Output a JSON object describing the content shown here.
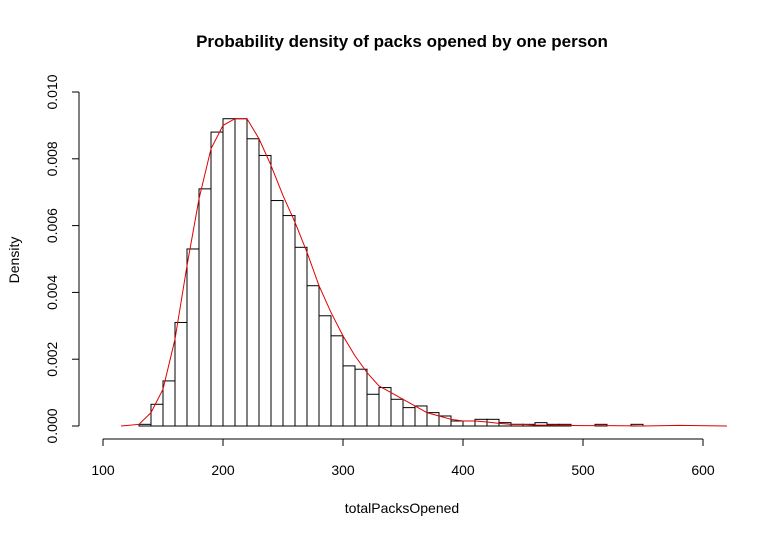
{
  "chart_data": {
    "type": "histogram",
    "title": "Probability density of packs opened by one person",
    "xlabel": "totalPacksOpened",
    "ylabel": "Density",
    "xlim": [
      100,
      620
    ],
    "ylim": [
      0,
      0.01
    ],
    "x_ticks": [
      100,
      200,
      300,
      400,
      500,
      600
    ],
    "y_ticks": [
      0.0,
      0.002,
      0.004,
      0.006,
      0.008,
      0.01
    ],
    "x_tick_labels": [
      "100",
      "200",
      "300",
      "400",
      "500",
      "600"
    ],
    "y_tick_labels": [
      "0.000",
      "0.002",
      "0.004",
      "0.006",
      "0.008",
      "0.010"
    ],
    "bin_width": 10,
    "bin_start": 130,
    "bars": [
      5e-05,
      0.00065,
      0.00135,
      0.0031,
      0.0053,
      0.0071,
      0.0088,
      0.0092,
      0.0092,
      0.0086,
      0.0081,
      0.00675,
      0.0063,
      0.00535,
      0.0042,
      0.0033,
      0.0027,
      0.0018,
      0.0017,
      0.00095,
      0.00115,
      0.0008,
      0.00055,
      0.0006,
      0.0004,
      0.0003,
      0.00015,
      0.00015,
      0.0002,
      0.0002,
      0.0001,
      5e-05,
      5e-05,
      0.0001,
      5e-05,
      5e-05,
      0.0,
      0.0,
      5e-05,
      0.0,
      0.0,
      5e-05,
      0.0,
      0.0,
      0.0,
      0.0,
      0.0,
      0.0,
      0.0,
      0.0,
      0.0,
      0.0,
      0.0,
      0.0,
      0.0,
      0.0,
      0.0,
      5e-05,
      5e-05,
      0.0,
      5e-05,
      0.0,
      0.0,
      0.0,
      0.0,
      0.0,
      0.0,
      0.0,
      0.0
    ],
    "density_curve": {
      "x": [
        115,
        130,
        140,
        150,
        160,
        170,
        180,
        190,
        200,
        210,
        220,
        230,
        240,
        250,
        260,
        270,
        280,
        290,
        300,
        310,
        320,
        330,
        340,
        350,
        360,
        370,
        380,
        390,
        400,
        410,
        420,
        430,
        440,
        450,
        460,
        480,
        500,
        520,
        550,
        580,
        620
      ],
      "y": [
        0.0,
        5e-05,
        0.0004,
        0.0011,
        0.0026,
        0.0048,
        0.0068,
        0.0083,
        0.009,
        0.0092,
        0.0092,
        0.0086,
        0.0078,
        0.0069,
        0.0061,
        0.0052,
        0.0042,
        0.0034,
        0.0027,
        0.0021,
        0.0016,
        0.0012,
        0.001,
        0.0008,
        0.0006,
        0.0004,
        0.0003,
        0.0002,
        0.00015,
        0.00015,
        0.00012,
        8e-05,
        5e-05,
        5e-05,
        3e-05,
        2e-05,
        1e-05,
        1e-05,
        0.0,
        2e-05,
        0.0
      ]
    }
  }
}
